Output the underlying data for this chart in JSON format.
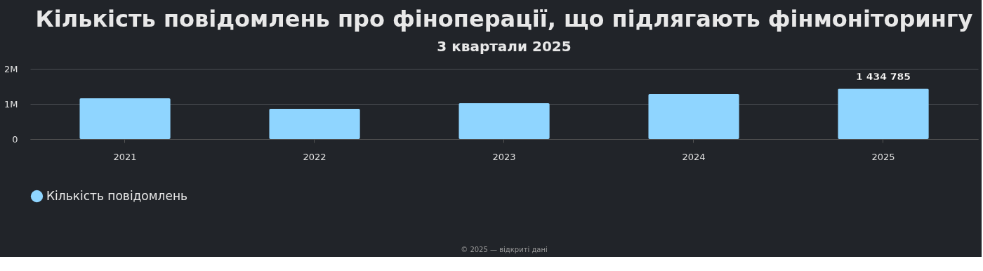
{
  "chart_data": {
    "type": "bar",
    "title": "Кількість повідомлень про фіноперації, що підлягають фінмоніторингу",
    "subtitle": "3 квартали 2025",
    "categories": [
      "2021",
      "2022",
      "2023",
      "2024",
      "2025"
    ],
    "series": [
      {
        "name": "Кількість повідомлень",
        "color": "#8fd5ff",
        "values": [
          1160000,
          860000,
          1020000,
          1280000,
          1434785
        ],
        "value_labels": [
          null,
          null,
          null,
          null,
          "1 434 785"
        ]
      }
    ],
    "ylim": [
      0,
      2000000
    ],
    "yticks": [
      0,
      {
        "value": 1000000,
        "label": "1M"
      },
      {
        "value": 2000000,
        "label": "2M"
      }
    ],
    "grid": "y",
    "legend": "bottom",
    "annotations": [
      "© 2025 — відкриті дані"
    ]
  }
}
